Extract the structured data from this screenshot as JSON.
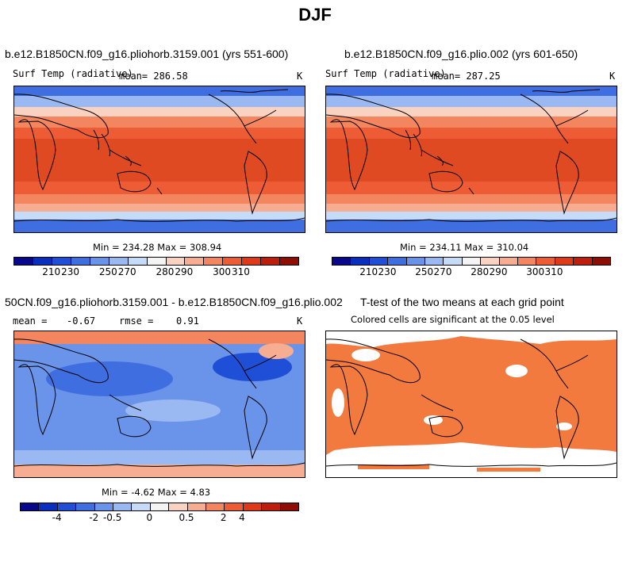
{
  "title": "DJF",
  "panels": {
    "p1": {
      "header": "b.e12.B1850CN.f09_g16.pliohorb.3159.001 (yrs 551-600)",
      "variable": "Surf Temp (radiative)",
      "mean_text": "mean= 286.58",
      "units": "K",
      "minmax": "Min = 234.28 Max = 308.94"
    },
    "p2": {
      "header": "b.e12.B1850CN.f09_g16.plio.002 (yrs 601-650)",
      "variable": "Surf Temp (radiative)",
      "mean_text": "mean= 287.25",
      "units": "K",
      "minmax": "Min = 234.11 Max = 310.04"
    },
    "p3": {
      "header": "50CN.f09_g16.pliohorb.3159.001 - b.e12.B1850CN.f09_g16.plio.002",
      "mean_label": "mean =",
      "mean_value": "-0.67",
      "rmse_label": "rmse =",
      "rmse_value": "0.91",
      "units": "K",
      "minmax": "Min = -4.62 Max = 4.83"
    },
    "p4": {
      "header": "T-test of the two means at each grid point",
      "subheader": "Colored cells are significant at the 0.05 level"
    }
  },
  "colorbars": {
    "abs_colors": [
      "#08088a",
      "#0a2fbf",
      "#1f4fd6",
      "#3f6ee0",
      "#6a93ea",
      "#9ab8f2",
      "#c6dbf8",
      "#f4f4f4",
      "#f9d2c2",
      "#f6ad92",
      "#f3865f",
      "#ee5c35",
      "#df3a18",
      "#be1f0c",
      "#8e0e04"
    ],
    "abs_ticks": [
      "210",
      "230",
      "250",
      "270",
      "280",
      "290",
      "300",
      "310"
    ],
    "diff_colors": [
      "#08088a",
      "#0a2fbf",
      "#1f4fd6",
      "#3f6ee0",
      "#6a93ea",
      "#9ab8f2",
      "#c6dbf8",
      "#f4f4f4",
      "#f9d2c2",
      "#f6ad92",
      "#f3865f",
      "#ee5c35",
      "#df3a18",
      "#be1f0c",
      "#8e0e04"
    ],
    "diff_ticks": [
      "-4",
      "-2",
      "-0.5",
      "0",
      "0.5",
      "2",
      "4"
    ]
  },
  "chart_data": [
    {
      "type": "heatmap",
      "title": "b.e12.B1850CN.f09_g16.pliohorb.3159.001 (yrs 551-600)",
      "variable": "Surf Temp (radiative)",
      "units": "K",
      "mean": 286.58,
      "min": 234.28,
      "max": 308.94,
      "colorbar_ticks": [
        210,
        230,
        250,
        270,
        280,
        290,
        300,
        310
      ]
    },
    {
      "type": "heatmap",
      "title": "b.e12.B1850CN.f09_g16.plio.002 (yrs 601-650)",
      "variable": "Surf Temp (radiative)",
      "units": "K",
      "mean": 287.25,
      "min": 234.11,
      "max": 310.04,
      "colorbar_ticks": [
        210,
        230,
        250,
        270,
        280,
        290,
        300,
        310
      ]
    },
    {
      "type": "heatmap",
      "title": "50CN.f09_g16.pliohorb.3159.001 - b.e12.B1850CN.f09_g16.plio.002",
      "units": "K",
      "mean": -0.67,
      "rmse": 0.91,
      "min": -4.62,
      "max": 4.83,
      "colorbar_ticks": [
        -4,
        -2,
        -0.5,
        0,
        0.5,
        2,
        4
      ]
    },
    {
      "type": "heatmap",
      "title": "T-test of the two means at each grid point",
      "subtitle": "Colored cells are significant at the 0.05 level",
      "significance_level": 0.05
    }
  ]
}
